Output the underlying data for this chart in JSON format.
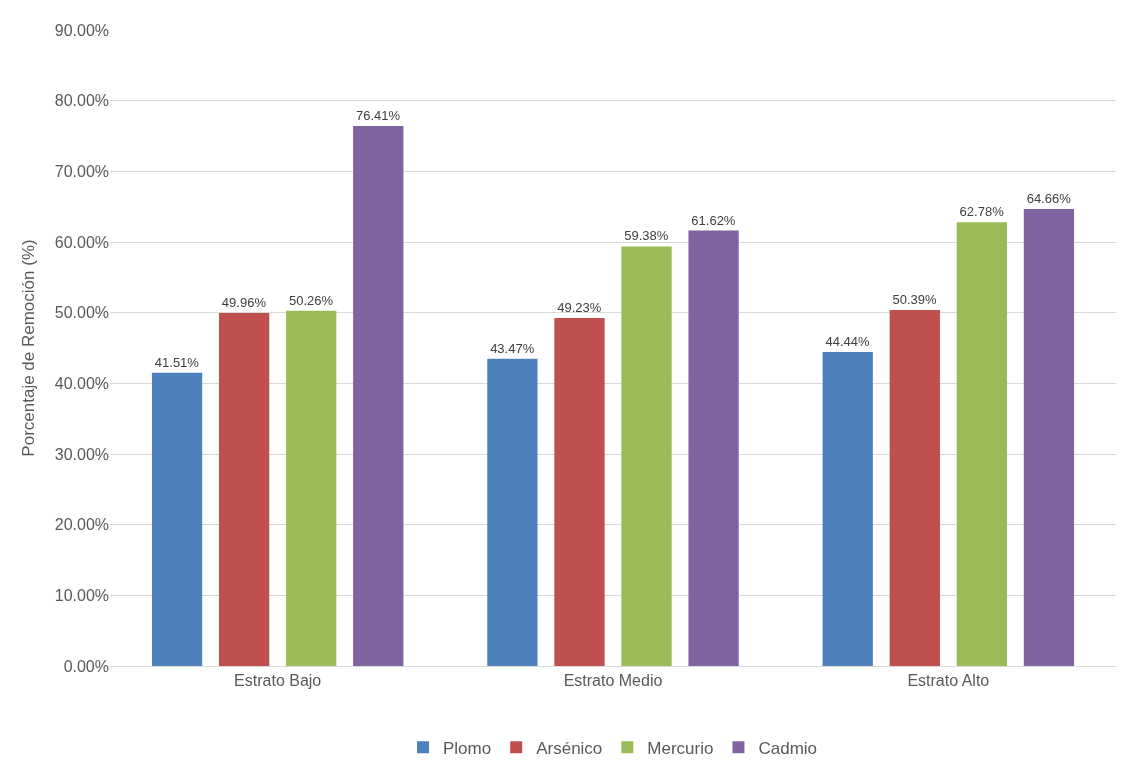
{
  "chart_data": {
    "type": "bar",
    "ylabel": "Porcentaje de Remoción (%)",
    "categories": [
      "Estrato Bajo",
      "Estrato Medio",
      "Estrato Alto"
    ],
    "series": [
      {
        "name": "Plomo",
        "color": "#4f81bd",
        "values": [
          41.51,
          43.47,
          44.44
        ],
        "value_labels": [
          "41.51%",
          "43.47%",
          "44.44%"
        ]
      },
      {
        "name": "Arsénico",
        "color": "#c0504d",
        "values": [
          49.96,
          49.23,
          50.39
        ],
        "value_labels": [
          "49.96%",
          "49.23%",
          "50.39%"
        ]
      },
      {
        "name": "Mercurio",
        "color": "#9bbb59",
        "values": [
          50.26,
          59.38,
          62.78
        ],
        "value_labels": [
          "50.26%",
          "59.38%",
          "62.78%"
        ]
      },
      {
        "name": "Cadmio",
        "color": "#8064a2",
        "values": [
          76.41,
          61.62,
          64.66
        ],
        "value_labels": [
          "76.41%",
          "61.62%",
          "64.66%"
        ]
      }
    ],
    "ylim": [
      0,
      90
    ],
    "yticks": [
      {
        "value": 0,
        "label": "0.00%"
      },
      {
        "value": 10,
        "label": "10.00%"
      },
      {
        "value": 20,
        "label": "20.00%"
      },
      {
        "value": 30,
        "label": "30.00%"
      },
      {
        "value": 40,
        "label": "40.00%"
      },
      {
        "value": 50,
        "label": "50.00%"
      },
      {
        "value": 60,
        "label": "60.00%"
      },
      {
        "value": 70,
        "label": "70.00%"
      },
      {
        "value": 80,
        "label": "80.00%"
      },
      {
        "value": 90,
        "label": "90.00%"
      }
    ],
    "grid": "y",
    "legend": "bottom"
  }
}
